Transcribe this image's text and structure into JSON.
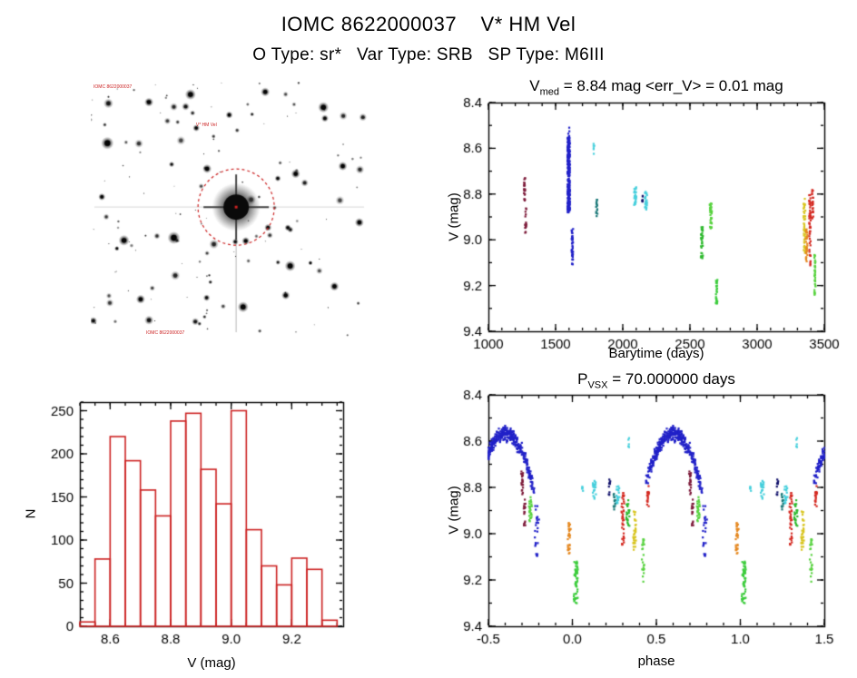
{
  "header": {
    "title": "IOMC 8622000037    V* HM Vel",
    "subtitle": "O Type: sr*   Var Type: SRB   SP Type: M6III",
    "source_id": "IOMC 8622000037",
    "star_name": "V* HM Vel",
    "o_type": "sr*",
    "var_type": "SRB",
    "sp_type": "M6III"
  },
  "finding_chart": {
    "bg_color": "#ffffff",
    "seed": 11,
    "n_faint_stars": 150,
    "label_color": "#cc2222",
    "labels": [
      {
        "text": "IOMC 8622000037"
      },
      {
        "text": "V* HM Vel"
      },
      {
        "text": "IOMC 8622000037"
      }
    ],
    "target": {
      "fx": 0.525,
      "fy": 0.49,
      "radius": 14,
      "circle_radius": 42,
      "circle_color": "#cc2222"
    },
    "big_stars": [
      [
        0.06,
        0.24,
        7
      ],
      [
        0.21,
        0.08,
        5
      ],
      [
        0.36,
        0.05,
        6
      ],
      [
        0.63,
        0.04,
        5
      ],
      [
        0.84,
        0.1,
        6
      ],
      [
        0.91,
        0.33,
        5
      ],
      [
        0.12,
        0.62,
        6
      ],
      [
        0.3,
        0.61,
        7
      ],
      [
        0.72,
        0.72,
        6
      ],
      [
        0.55,
        0.88,
        6
      ],
      [
        0.18,
        0.85,
        5
      ],
      [
        0.88,
        0.8,
        5
      ],
      [
        0.42,
        0.34,
        5
      ],
      [
        0.74,
        0.36,
        5
      ],
      [
        0.5,
        0.13,
        4
      ],
      [
        0.97,
        0.55,
        5
      ],
      [
        0.04,
        0.45,
        4
      ],
      [
        0.64,
        0.57,
        4
      ]
    ]
  },
  "chart_data": [
    {
      "id": "lightcurve",
      "type": "scatter",
      "title": "V_med = 8.84 mag <err_V> = 0.01 mag",
      "title_parts": {
        "prefix": "V",
        "sub": "med",
        "rest": " = 8.84 mag <err_V> = 0.01 mag"
      },
      "v_med_mag": 8.84,
      "err_v_mag": 0.01,
      "xlabel": "Barytime (days)",
      "ylabel": "V (mag)",
      "xlim": [
        1000,
        3500
      ],
      "ylim": [
        8.4,
        9.4
      ],
      "y_axis_inverted": true,
      "xticks": [
        {
          "v": 1000,
          "l": "1000"
        },
        {
          "v": 1500,
          "l": "1500"
        },
        {
          "v": 2000,
          "l": "2000"
        },
        {
          "v": 2500,
          "l": "2500"
        },
        {
          "v": 3000,
          "l": "3000"
        },
        {
          "v": 3500,
          "l": "3500"
        }
      ],
      "yticks": [
        {
          "v": 8.4,
          "l": "8.4"
        },
        {
          "v": 8.6,
          "l": "8.6"
        },
        {
          "v": 8.8,
          "l": "8.8"
        },
        {
          "v": 9.0,
          "l": "9.0"
        },
        {
          "v": 9.2,
          "l": "9.2"
        },
        {
          "v": 9.4,
          "l": "9.4"
        }
      ],
      "xminor": 5,
      "yminor": 2,
      "repeat_offsets": [
        0
      ],
      "repeat_period": 0,
      "clusters": [
        {
          "x": 1268,
          "dx": 5,
          "y0": 8.73,
          "y1": 8.83,
          "color": "#7d1b3a",
          "n": 22
        },
        {
          "x": 1277,
          "dx": 5,
          "y0": 8.85,
          "y1": 8.97,
          "color": "#7d1b3a",
          "n": 18
        },
        {
          "x": 1597,
          "dx": 9,
          "y0": 8.55,
          "y1": 8.88,
          "color": "#2121c8",
          "n": 260
        },
        {
          "x": 1598,
          "dx": 4,
          "y0": 8.5,
          "y1": 8.56,
          "color": "#2121c8",
          "n": 8
        },
        {
          "x": 1624,
          "dx": 6,
          "y0": 8.95,
          "y1": 9.12,
          "color": "#2121c8",
          "n": 40
        },
        {
          "x": 1786,
          "dx": 4,
          "y0": 8.58,
          "y1": 8.63,
          "color": "#46cfdc",
          "n": 6
        },
        {
          "x": 1806,
          "dx": 5,
          "y0": 8.82,
          "y1": 8.9,
          "color": "#1a7878",
          "n": 14
        },
        {
          "x": 2092,
          "dx": 8,
          "y0": 8.77,
          "y1": 8.85,
          "color": "#46cfdc",
          "n": 26
        },
        {
          "x": 2145,
          "dx": 3,
          "y0": 8.8,
          "y1": 8.85,
          "color": "#10106a",
          "n": 6
        },
        {
          "x": 2172,
          "dx": 8,
          "y0": 8.79,
          "y1": 8.87,
          "color": "#46cfdc",
          "n": 24
        },
        {
          "x": 2588,
          "dx": 8,
          "y0": 8.93,
          "y1": 9.09,
          "color": "#2eb92e",
          "n": 34
        },
        {
          "x": 2655,
          "dx": 8,
          "y0": 8.84,
          "y1": 8.96,
          "color": "#57d23e",
          "n": 30
        },
        {
          "x": 2698,
          "dx": 6,
          "y0": 9.17,
          "y1": 9.28,
          "color": "#3ccc3c",
          "n": 26
        },
        {
          "x": 3352,
          "dx": 7,
          "y0": 8.82,
          "y1": 9.06,
          "color": "#d8c520",
          "n": 46
        },
        {
          "x": 3368,
          "dx": 6,
          "y0": 8.95,
          "y1": 9.1,
          "color": "#e58820",
          "n": 30
        },
        {
          "x": 3392,
          "dx": 6,
          "y0": 8.8,
          "y1": 9.12,
          "color": "#d42a22",
          "n": 48
        },
        {
          "x": 3412,
          "dx": 5,
          "y0": 8.78,
          "y1": 8.92,
          "color": "#d42a22",
          "n": 22
        },
        {
          "x": 3430,
          "dx": 5,
          "y0": 9.05,
          "y1": 9.26,
          "color": "#57d23e",
          "n": 34
        }
      ],
      "arcs": []
    },
    {
      "id": "histogram",
      "type": "bar",
      "xlabel": "V (mag)",
      "ylabel": "N",
      "color": "#cc2222",
      "xlim": [
        8.5,
        9.37
      ],
      "ylim": [
        0,
        260
      ],
      "y_axis_inverted": false,
      "xticks": [
        {
          "v": 8.6,
          "l": "8.6"
        },
        {
          "v": 8.8,
          "l": "8.8"
        },
        {
          "v": 9.0,
          "l": "9.0"
        },
        {
          "v": 9.2,
          "l": "9.2"
        }
      ],
      "yticks": [
        {
          "v": 0,
          "l": "0"
        },
        {
          "v": 50,
          "l": "50"
        },
        {
          "v": 100,
          "l": "100"
        },
        {
          "v": 150,
          "l": "150"
        },
        {
          "v": 200,
          "l": "200"
        },
        {
          "v": 250,
          "l": "250"
        }
      ],
      "xminor": 4,
      "yminor": 5,
      "bin_start": 8.5,
      "bin_width": 0.05,
      "counts": [
        5,
        78,
        220,
        192,
        158,
        128,
        238,
        247,
        182,
        142,
        250,
        112,
        70,
        48,
        79,
        66,
        7
      ]
    },
    {
      "id": "phase_plot",
      "type": "scatter",
      "title": "P_VSX = 70.000000 days",
      "title_parts": {
        "prefix": "P",
        "sub": "VSX",
        "rest": " = 70.000000 days"
      },
      "period_days": 70.0,
      "xlabel": "phase",
      "ylabel": "V (mag)",
      "xlim": [
        -0.5,
        1.5
      ],
      "ylim": [
        8.4,
        9.4
      ],
      "y_axis_inverted": true,
      "xticks": [
        {
          "v": -0.5,
          "l": "-0.5"
        },
        {
          "v": 0.0,
          "l": "0.0"
        },
        {
          "v": 0.5,
          "l": "0.5"
        },
        {
          "v": 1.0,
          "l": "1.0"
        },
        {
          "v": 1.5,
          "l": "1.5"
        }
      ],
      "yticks": [
        {
          "v": 8.4,
          "l": "8.4"
        },
        {
          "v": 8.6,
          "l": "8.6"
        },
        {
          "v": 8.8,
          "l": "8.8"
        },
        {
          "v": 9.0,
          "l": "9.0"
        },
        {
          "v": 9.2,
          "l": "9.2"
        },
        {
          "v": 9.4,
          "l": "9.4"
        }
      ],
      "xminor": 5,
      "yminor": 2,
      "repeat_offsets": [
        -1,
        0,
        1
      ],
      "repeat_period": 1,
      "arcs": [
        {
          "p0": 0.44,
          "p1": 0.77,
          "p_center": 0.6,
          "v_min": 8.565,
          "v_amp": 0.24,
          "spread": 0.045,
          "color": "#2121c8",
          "n": 420
        }
      ],
      "clusters": [
        {
          "x": 0.7,
          "dx": 0.006,
          "y0": 8.73,
          "y1": 8.83,
          "color": "#7d1b3a",
          "n": 20
        },
        {
          "x": 0.715,
          "dx": 0.006,
          "y0": 8.85,
          "y1": 8.97,
          "color": "#7d1b3a",
          "n": 16
        },
        {
          "x": 0.79,
          "dx": 0.014,
          "y0": 8.88,
          "y1": 9.1,
          "color": "#2121c8",
          "n": 24
        },
        {
          "x": 0.13,
          "dx": 0.01,
          "y0": 8.77,
          "y1": 8.85,
          "color": "#46cfdc",
          "n": 22
        },
        {
          "x": 0.27,
          "dx": 0.01,
          "y0": 8.79,
          "y1": 8.87,
          "color": "#46cfdc",
          "n": 20
        },
        {
          "x": 0.06,
          "dx": 0.004,
          "y0": 8.78,
          "y1": 8.82,
          "color": "#46cfdc",
          "n": 5
        },
        {
          "x": 0.335,
          "dx": 0.004,
          "y0": 8.58,
          "y1": 8.63,
          "color": "#46cfdc",
          "n": 5
        },
        {
          "x": 0.25,
          "dx": 0.006,
          "y0": 8.82,
          "y1": 8.9,
          "color": "#1a7878",
          "n": 12
        },
        {
          "x": 0.33,
          "dx": 0.009,
          "y0": 8.85,
          "y1": 8.97,
          "color": "#2eb92e",
          "n": 24
        },
        {
          "x": 0.75,
          "dx": 0.009,
          "y0": 8.84,
          "y1": 8.96,
          "color": "#57d23e",
          "n": 26
        },
        {
          "x": 0.02,
          "dx": 0.012,
          "y0": 9.12,
          "y1": 9.3,
          "color": "#3ccc3c",
          "n": 60
        },
        {
          "x": 0.98,
          "dx": 0.008,
          "y0": 8.95,
          "y1": 9.1,
          "color": "#e58820",
          "n": 30
        },
        {
          "x": 0.37,
          "dx": 0.008,
          "y0": 8.9,
          "y1": 9.07,
          "color": "#d8c520",
          "n": 34
        },
        {
          "x": 0.3,
          "dx": 0.008,
          "y0": 8.82,
          "y1": 9.05,
          "color": "#d42a22",
          "n": 38
        },
        {
          "x": 0.45,
          "dx": 0.006,
          "y0": 8.78,
          "y1": 8.9,
          "color": "#d42a22",
          "n": 18
        },
        {
          "x": 0.22,
          "dx": 0.006,
          "y0": 8.76,
          "y1": 8.84,
          "color": "#10106a",
          "n": 10
        },
        {
          "x": 0.42,
          "dx": 0.007,
          "y0": 9.02,
          "y1": 9.22,
          "color": "#57d23e",
          "n": 22
        }
      ]
    }
  ]
}
